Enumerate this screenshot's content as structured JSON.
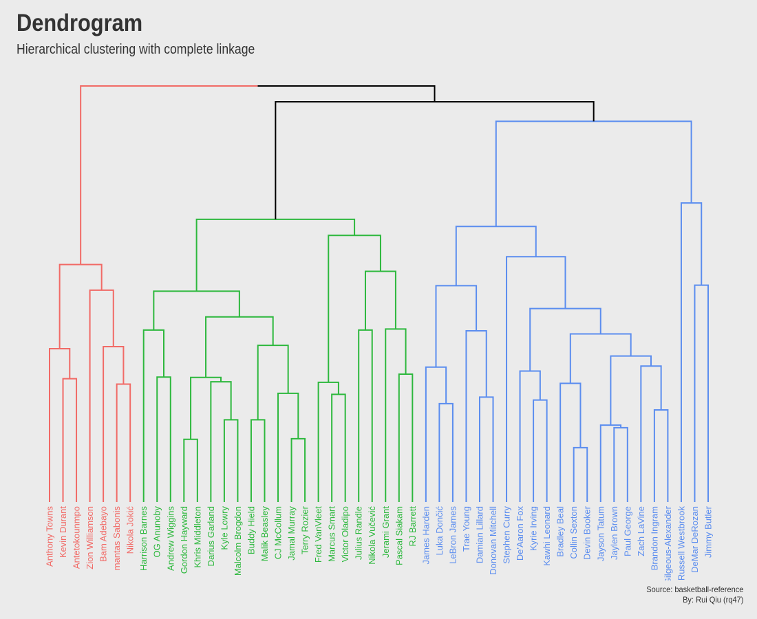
{
  "title": "Dendrogram",
  "subtitle": "Hierarchical clustering with complete linkage",
  "caption": {
    "source": "Source: basketball-reference",
    "author": "By: Rui Qiu (rq47)"
  },
  "colors": {
    "background": "#ebebeb",
    "root": "#000000",
    "red": "#f16a66",
    "green": "#2db83d",
    "blue": "#5b8def"
  },
  "chart_data": {
    "type": "dendrogram",
    "linkage": "complete",
    "leaves": [
      {
        "label": "Anthony Towns",
        "cluster": "red"
      },
      {
        "label": "Kevin Durant",
        "cluster": "red"
      },
      {
        "label": "Antetokounmpo",
        "cluster": "red"
      },
      {
        "label": "Zion Williamson",
        "cluster": "red"
      },
      {
        "label": "Bam Adebayo",
        "cluster": "red"
      },
      {
        "label": "mantas Sabonis",
        "cluster": "red"
      },
      {
        "label": "Nikola Jokić",
        "cluster": "red"
      },
      {
        "label": "Harrison Barnes",
        "cluster": "green"
      },
      {
        "label": "OG Anunoby",
        "cluster": "green"
      },
      {
        "label": "Andrew Wiggins",
        "cluster": "green"
      },
      {
        "label": "Gordon Hayward",
        "cluster": "green"
      },
      {
        "label": "Khris Middleton",
        "cluster": "green"
      },
      {
        "label": "Darius Garland",
        "cluster": "green"
      },
      {
        "label": "Kyle Lowry",
        "cluster": "green"
      },
      {
        "label": "Malcolm Brogdon",
        "cluster": "green"
      },
      {
        "label": "Buddy Hield",
        "cluster": "green"
      },
      {
        "label": "Malik Beasley",
        "cluster": "green"
      },
      {
        "label": "CJ McCollum",
        "cluster": "green"
      },
      {
        "label": "Jamal Murray",
        "cluster": "green"
      },
      {
        "label": "Terry Rozier",
        "cluster": "green"
      },
      {
        "label": "Fred VanVleet",
        "cluster": "green"
      },
      {
        "label": "Marcus Smart",
        "cluster": "green"
      },
      {
        "label": "Victor Oladipo",
        "cluster": "green"
      },
      {
        "label": "Julius Randle",
        "cluster": "green"
      },
      {
        "label": "Nikola Vučević",
        "cluster": "green"
      },
      {
        "label": "Jerami Grant",
        "cluster": "green"
      },
      {
        "label": "Pascal Siakam",
        "cluster": "green"
      },
      {
        "label": "RJ Barrett",
        "cluster": "green"
      },
      {
        "label": "James Harden",
        "cluster": "blue"
      },
      {
        "label": "Luka Dončić",
        "cluster": "blue"
      },
      {
        "label": "LeBron James",
        "cluster": "blue"
      },
      {
        "label": "Trae Young",
        "cluster": "blue"
      },
      {
        "label": "Damian Lillard",
        "cluster": "blue"
      },
      {
        "label": "Donovan Mitchell",
        "cluster": "blue"
      },
      {
        "label": "Stephen Curry",
        "cluster": "blue"
      },
      {
        "label": "De'Aaron Fox",
        "cluster": "blue"
      },
      {
        "label": "Kyrie Irving",
        "cluster": "blue"
      },
      {
        "label": "Kawhi Leonard",
        "cluster": "blue"
      },
      {
        "label": "Bradley Beal",
        "cluster": "blue"
      },
      {
        "label": "Collin Sexton",
        "cluster": "blue"
      },
      {
        "label": "Devin Booker",
        "cluster": "blue"
      },
      {
        "label": "Jayson Tatum",
        "cluster": "blue"
      },
      {
        "label": "Jaylen Brown",
        "cluster": "blue"
      },
      {
        "label": "Paul George",
        "cluster": "blue"
      },
      {
        "label": "Zach LaVine",
        "cluster": "blue"
      },
      {
        "label": "Brandon Ingram",
        "cluster": "blue"
      },
      {
        "label": "Gilgeous-Alexander",
        "cluster": "blue"
      },
      {
        "label": "Russell Westbrook",
        "cluster": "blue"
      },
      {
        "label": "DeMar DeRozan",
        "cluster": "blue"
      },
      {
        "label": "Jimmy Butler",
        "cluster": "blue"
      }
    ],
    "merges": [
      {
        "a": 1,
        "b": 2,
        "height": 0.2965,
        "cluster": "red"
      },
      {
        "a": 0,
        "b": "m0",
        "height": 0.3686,
        "cluster": "red"
      },
      {
        "a": 5,
        "b": 6,
        "height": 0.2835,
        "cluster": "red"
      },
      {
        "a": 4,
        "b": "m2",
        "height": 0.3736,
        "cluster": "red"
      },
      {
        "a": 3,
        "b": "m3",
        "height": 0.5093,
        "cluster": "red"
      },
      {
        "a": "m1",
        "b": "m4",
        "height": 0.5709,
        "cluster": "red"
      },
      {
        "a": 8,
        "b": 9,
        "height": 0.3004,
        "cluster": "green"
      },
      {
        "a": 7,
        "b": "m6",
        "height": 0.4135,
        "cluster": "green"
      },
      {
        "a": 10,
        "b": 11,
        "height": 0.1509,
        "cluster": "green"
      },
      {
        "a": 13,
        "b": 14,
        "height": 0.1978,
        "cluster": "green"
      },
      {
        "a": 12,
        "b": "m9",
        "height": 0.289,
        "cluster": "green"
      },
      {
        "a": "m8",
        "b": "m10",
        "height": 0.2995,
        "cluster": "green"
      },
      {
        "a": 15,
        "b": 16,
        "height": 0.1978,
        "cluster": "green"
      },
      {
        "a": 18,
        "b": 19,
        "height": 0.1523,
        "cluster": "green"
      },
      {
        "a": 17,
        "b": "m13",
        "height": 0.2614,
        "cluster": "green"
      },
      {
        "a": "m12",
        "b": "m14",
        "height": 0.3766,
        "cluster": "green"
      },
      {
        "a": "m11",
        "b": "m15",
        "height": 0.445,
        "cluster": "green"
      },
      {
        "a": "m7",
        "b": "m16",
        "height": 0.5069,
        "cluster": "green"
      },
      {
        "a": 21,
        "b": 22,
        "height": 0.2588,
        "cluster": "green"
      },
      {
        "a": 20,
        "b": "m18",
        "height": 0.2878,
        "cluster": "green"
      },
      {
        "a": 23,
        "b": 24,
        "height": 0.4135,
        "cluster": "green"
      },
      {
        "a": 26,
        "b": 27,
        "height": 0.3075,
        "cluster": "green"
      },
      {
        "a": 25,
        "b": "m21",
        "height": 0.4159,
        "cluster": "green"
      },
      {
        "a": "m20",
        "b": "m22",
        "height": 0.5546,
        "cluster": "green"
      },
      {
        "a": "m19",
        "b": "m23",
        "height": 0.641,
        "cluster": "green"
      },
      {
        "a": "m17",
        "b": "m24",
        "height": 0.6796,
        "cluster": "green"
      },
      {
        "a": 29,
        "b": 30,
        "height": 0.2366,
        "cluster": "blue"
      },
      {
        "a": 28,
        "b": "m26",
        "height": 0.3243,
        "cluster": "blue"
      },
      {
        "a": 32,
        "b": 33,
        "height": 0.2522,
        "cluster": "blue"
      },
      {
        "a": 31,
        "b": "m28",
        "height": 0.4116,
        "cluster": "blue"
      },
      {
        "a": "m27",
        "b": "m29",
        "height": 0.52,
        "cluster": "blue"
      },
      {
        "a": 36,
        "b": 37,
        "height": 0.2453,
        "cluster": "blue"
      },
      {
        "a": 35,
        "b": "m31",
        "height": 0.3149,
        "cluster": "blue"
      },
      {
        "a": 39,
        "b": 40,
        "height": 0.1307,
        "cluster": "blue"
      },
      {
        "a": 38,
        "b": "m33",
        "height": 0.2854,
        "cluster": "blue"
      },
      {
        "a": 42,
        "b": 43,
        "height": 0.1788,
        "cluster": "blue"
      },
      {
        "a": 41,
        "b": "m35",
        "height": 0.185,
        "cluster": "blue"
      },
      {
        "a": 45,
        "b": 46,
        "height": 0.2215,
        "cluster": "blue"
      },
      {
        "a": 44,
        "b": "m37",
        "height": 0.3268,
        "cluster": "blue"
      },
      {
        "a": "m36",
        "b": "m38",
        "height": 0.351,
        "cluster": "blue"
      },
      {
        "a": "m34",
        "b": "m39",
        "height": 0.4042,
        "cluster": "blue"
      },
      {
        "a": "m32",
        "b": "m40",
        "height": 0.465,
        "cluster": "blue"
      },
      {
        "a": 34,
        "b": "m41",
        "height": 0.5896,
        "cluster": "blue"
      },
      {
        "a": "m30",
        "b": "m42",
        "height": 0.6623,
        "cluster": "blue"
      },
      {
        "a": 48,
        "b": 49,
        "height": 0.5213,
        "cluster": "blue"
      },
      {
        "a": 47,
        "b": "m44",
        "height": 0.7188,
        "cluster": "blue"
      },
      {
        "a": "m43",
        "b": "m45",
        "height": 0.9151,
        "cluster": "blue"
      },
      {
        "a": "m25",
        "b": "m46",
        "height": 0.962,
        "cluster": "black"
      },
      {
        "a": "m5",
        "b": "m47",
        "height": 1.0,
        "cluster": "black"
      }
    ]
  }
}
